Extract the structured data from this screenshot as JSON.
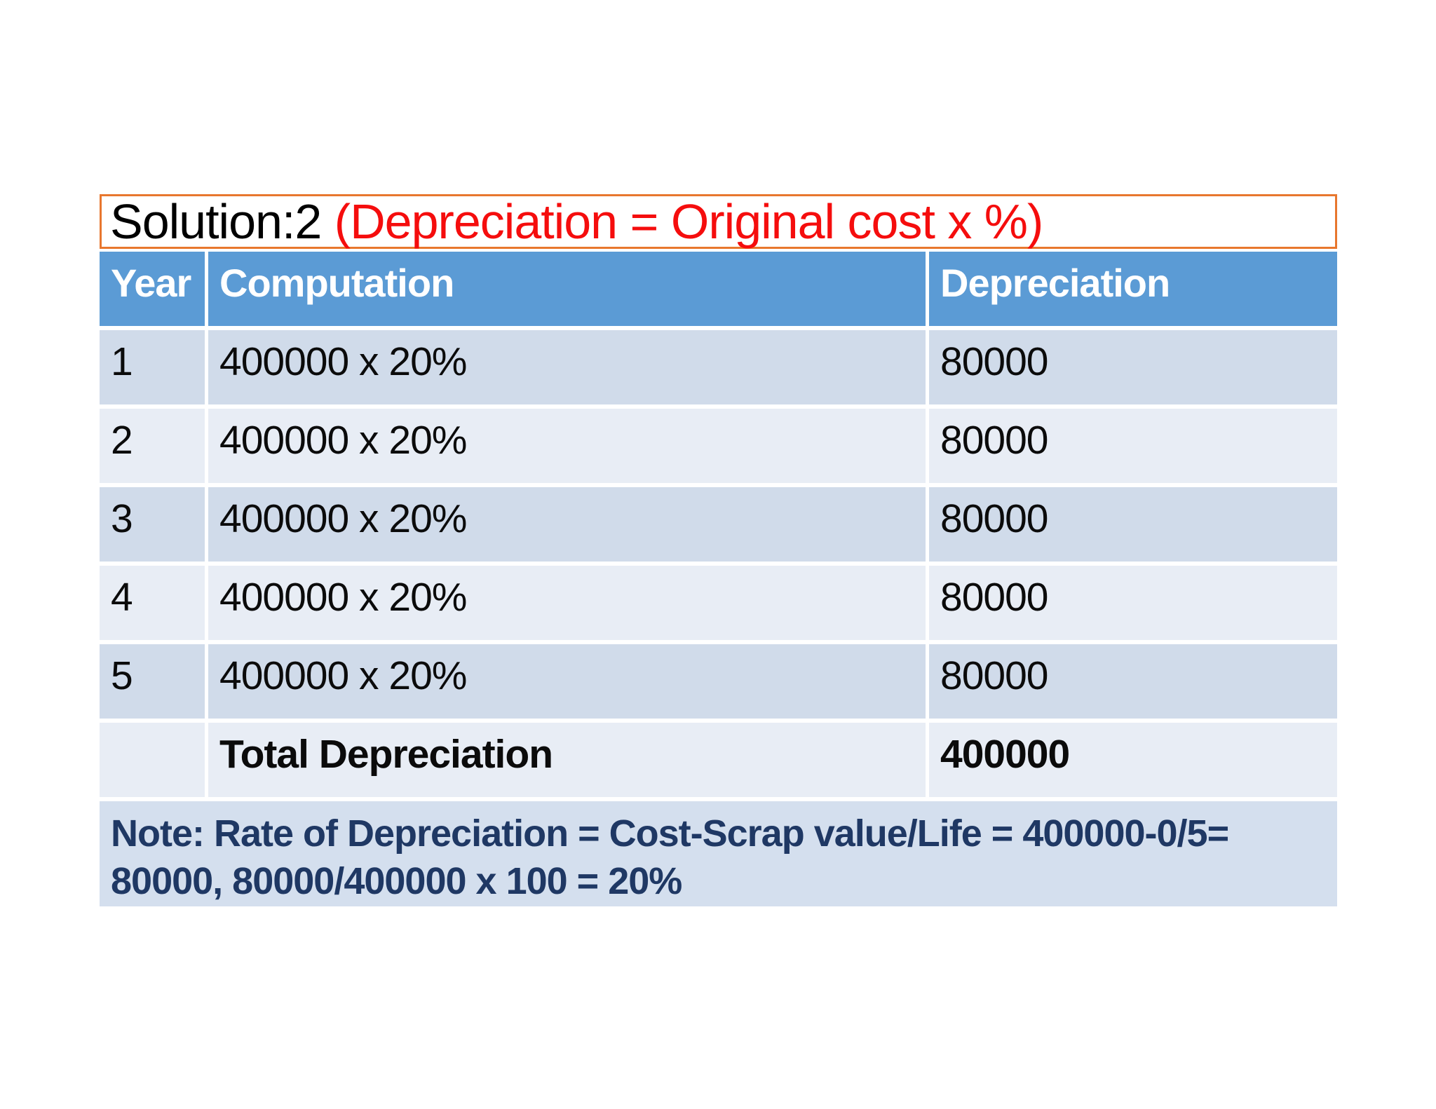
{
  "title": {
    "prefix": "Solution:2 ",
    "highlight": "(Depreciation = Original cost x %)"
  },
  "table": {
    "headers": [
      "Year",
      "Computation",
      "Depreciation"
    ],
    "rows": [
      {
        "year": "1",
        "computation": "400000 x 20%",
        "depreciation": "80000"
      },
      {
        "year": "2",
        "computation": "400000 x 20%",
        "depreciation": "80000"
      },
      {
        "year": "3",
        "computation": "400000 x 20%",
        "depreciation": "80000"
      },
      {
        "year": "4",
        "computation": "400000 x 20%",
        "depreciation": "80000"
      },
      {
        "year": "5",
        "computation": "400000 x 20%",
        "depreciation": "80000"
      },
      {
        "year": "",
        "computation": "Total Depreciation",
        "depreciation": "400000"
      }
    ],
    "note": {
      "line1": "Note: Rate of Depreciation = Cost-Scrap value/Life = 400000-0/5=",
      "line2": "80000, 80000/400000 x 100 = 20%"
    }
  },
  "colors": {
    "header_bg": "#5B9BD5",
    "band_dark": "#D0DBEA",
    "band_light": "#E8EDF5",
    "note_bg": "#D4DFEE",
    "note_text": "#1F3864",
    "title_highlight": "#F50D0D",
    "title_border": "#E8772E"
  }
}
